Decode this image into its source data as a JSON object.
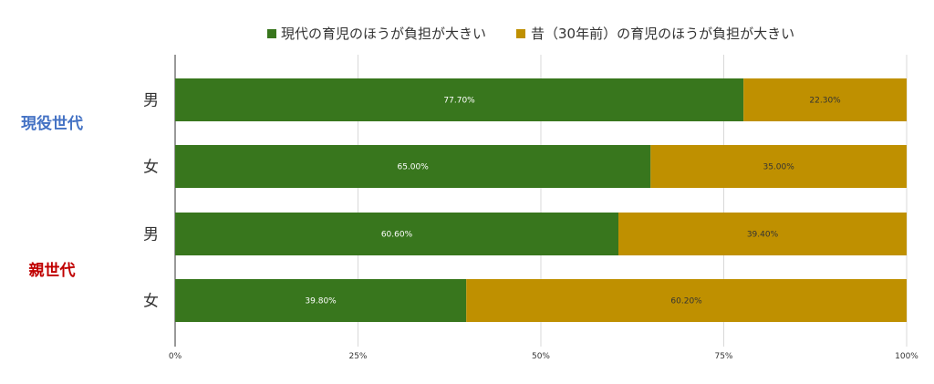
{
  "chart_data": {
    "type": "bar",
    "orientation": "horizontal",
    "stacked": "percent",
    "categories": [
      "男",
      "女",
      "男",
      "女"
    ],
    "groups": [
      {
        "label": "現役世代",
        "color": "#4472C4",
        "categories": [
          "男",
          "女"
        ]
      },
      {
        "label": "親世代",
        "color": "#C00000",
        "categories": [
          "男",
          "女"
        ]
      }
    ],
    "series": [
      {
        "name": "現代の育児のほうが負担が大きい",
        "color": "#38761D",
        "values": [
          77.7,
          65.0,
          60.6,
          39.8
        ],
        "labels": [
          "77.70%",
          "65.00%",
          "60.60%",
          "39.80%"
        ],
        "label_color": "#ffffff"
      },
      {
        "name": "昔（30年前）の育児のほうが負担が大きい",
        "color": "#BF9000",
        "values": [
          22.3,
          35.0,
          39.4,
          60.2
        ],
        "labels": [
          "22.30%",
          "35.00%",
          "39.40%",
          "60.20%"
        ],
        "label_color": "#333333"
      }
    ],
    "xlim": [
      0,
      100
    ],
    "x_ticks": [
      0,
      25,
      50,
      75,
      100
    ],
    "x_tick_labels": [
      "0%",
      "25%",
      "50%",
      "75%",
      "100%"
    ],
    "grid": true,
    "legend_position": "top"
  }
}
